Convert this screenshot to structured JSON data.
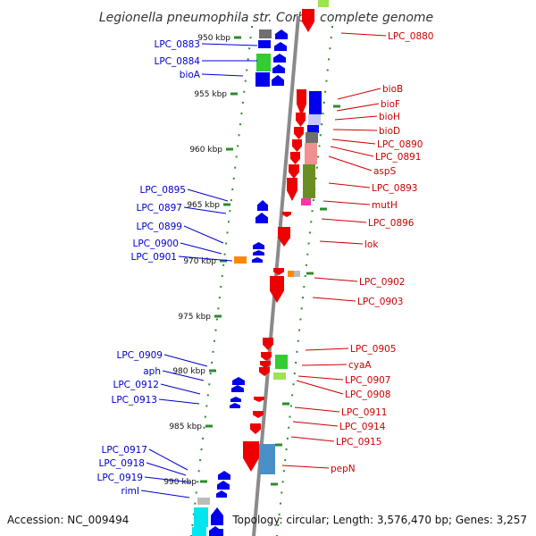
{
  "title": "Legionella pneumophila str. Corby, complete genome",
  "footer": {
    "accession": "Accession: NC_009494",
    "topology": "Topology: circular; Length: 3,576,470 bp; Genes: 3,257"
  },
  "colors": {
    "backbone": "#8a8a8a",
    "dots": "#2e8b2e",
    "forward_label": "#0000cc",
    "reverse_label": "#cc0000"
  },
  "ticks": [
    "950 kbp",
    "955 kbp",
    "960 kbp",
    "965 kbp",
    "970 kbp",
    "975 kbp",
    "980 kbp",
    "985 kbp",
    "990 kbp"
  ],
  "left_labels": [
    "LPC_0883",
    "LPC_0884",
    "bioA",
    "LPC_0895",
    "LPC_0897",
    "LPC_0899",
    "LPC_0900",
    "LPC_0901",
    "LPC_0909",
    "aph",
    "LPC_0912",
    "LPC_0913",
    "LPC_0917",
    "LPC_0918",
    "LPC_0919",
    "rimI"
  ],
  "right_labels": [
    "LPC_0880",
    "bioB",
    "bioF",
    "bioH",
    "bioD",
    "LPC_0890",
    "LPC_0891",
    "aspS",
    "LPC_0893",
    "mutH",
    "LPC_0896",
    "lok",
    "LPC_0902",
    "LPC_0903",
    "LPC_0905",
    "cyaA",
    "LPC_0907",
    "LPC_0908",
    "LPC_0911",
    "LPC_0914",
    "LPC_0915",
    "pepN"
  ]
}
